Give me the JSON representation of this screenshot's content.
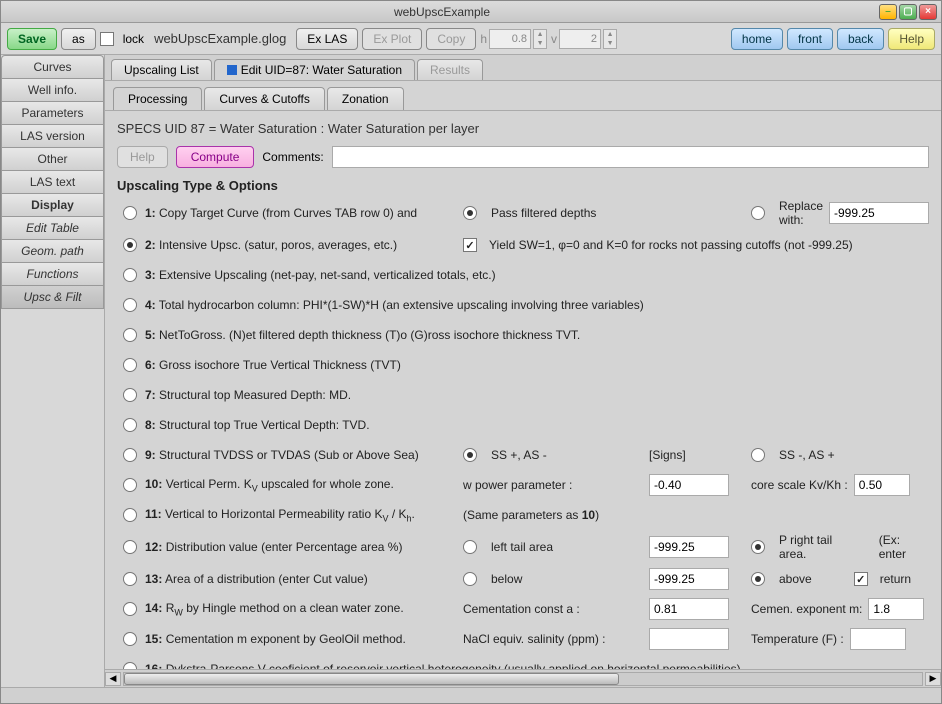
{
  "window": {
    "title": "webUpscExample"
  },
  "toolbar": {
    "save": "Save",
    "as": "as",
    "lock": "lock",
    "filename": "webUpscExample.glog",
    "ex_las": "Ex LAS",
    "ex_plot": "Ex Plot",
    "copy": "Copy",
    "h_label": "h",
    "h_value": "0.8",
    "v_label": "v",
    "v_value": "2",
    "home": "home",
    "front": "front",
    "back": "back",
    "help": "Help"
  },
  "sidebar": {
    "items": [
      {
        "label": "Curves",
        "style": ""
      },
      {
        "label": "Well info.",
        "style": ""
      },
      {
        "label": "Parameters",
        "style": ""
      },
      {
        "label": "LAS version",
        "style": ""
      },
      {
        "label": "Other",
        "style": ""
      },
      {
        "label": "LAS text",
        "style": ""
      },
      {
        "label": "Display",
        "style": "bold"
      },
      {
        "label": "Edit Table",
        "style": "italic"
      },
      {
        "label": "Geom. path",
        "style": "italic"
      },
      {
        "label": "Functions",
        "style": "italic"
      },
      {
        "label": "Upsc & Filt",
        "style": "italic active"
      }
    ]
  },
  "topTabs": {
    "list": "Upscaling List",
    "edit": "Edit UID=87: Water Saturation",
    "results": "Results"
  },
  "subTabs": {
    "processing": "Processing",
    "curves": "Curves & Cutoffs",
    "zonation": "Zonation"
  },
  "spec": "SPECS UID 87 = Water Saturation : Water Saturation per layer",
  "helpBtn": "Help",
  "computeBtn": "Compute",
  "commentsLabel": "Comments:",
  "sectionHeader": "Upscaling Type & Options",
  "opt1": {
    "num": "1:",
    "label": "Copy Target Curve (from Curves TAB row 0) and",
    "pass": "Pass filtered depths",
    "replace": "Replace with:",
    "value": "-999.25"
  },
  "opt2": {
    "num": "2:",
    "label": "Intensive Upsc. (satur, poros, averages, etc.)",
    "yield": "Yield SW=1, φ=0 and K=0 for rocks not passing cutoffs (not -999.25)"
  },
  "opt3": {
    "num": "3:",
    "label": "Extensive Upscaling (net-pay, net-sand, verticalized totals, etc.)"
  },
  "opt4": {
    "num": "4:",
    "label": "Total hydrocarbon column: PHI*(1-SW)*H (an extensive upscaling involving three variables)"
  },
  "opt5": {
    "num": "5:",
    "label": "NetToGross. (N)et filtered depth thickness (T)o (G)ross isochore thickness TVT."
  },
  "opt6": {
    "num": "6:",
    "label": "Gross isochore True Vertical Thickness (TVT)"
  },
  "opt7": {
    "num": "7:",
    "label": "Structural top Measured Depth: MD."
  },
  "opt8": {
    "num": "8:",
    "label": "Structural top True Vertical Depth: TVD."
  },
  "opt9": {
    "num": "9:",
    "label": "Structural TVDSS or TVDAS (Sub or Above Sea)",
    "ss_plus": "SS +, AS -",
    "signs": "[Signs]",
    "ss_minus": "SS -, AS +"
  },
  "opt10": {
    "num": "10:",
    "label": "Vertical Perm. K",
    "sub": "V",
    "label2": " upscaled for whole zone.",
    "param": "w power parameter :",
    "val": "-0.40",
    "core": "core scale Kv/Kh :",
    "coreval": "0.50"
  },
  "opt11": {
    "num": "11:",
    "label": "Vertical to Horizontal Permeability ratio K",
    "sub1": "V",
    "slash": " / K",
    "sub2": "h",
    "tail": "(Same parameters as ",
    "b": "10",
    ")": ")"
  },
  "opt12": {
    "num": "12:",
    "label": "Distribution value (enter Percentage area %)",
    "left": "left tail area",
    "val": "-999.25",
    "right": "P right tail area.",
    "ex": "(Ex: enter "
  },
  "opt13": {
    "num": "13:",
    "label": "Area of a distribution (enter Cut value)",
    "below": "below",
    "val": "-999.25",
    "above": "above",
    "return": "return"
  },
  "opt14": {
    "num": "14:",
    "label": "R",
    "sub": "W",
    "label2": " by Hingle method on a clean water zone.",
    "cem": "Cementation const a :",
    "cemval": "0.81",
    "exp": "Cemen. exponent m:",
    "expval": "1.8"
  },
  "opt15": {
    "num": "15:",
    "label": "Cementation m exponent by GeolOil method.",
    "nacl": "NaCl equiv. salinity (ppm) :",
    "temp": "Temperature (F) :"
  },
  "opt16": {
    "num": "16:",
    "label": "Dykstra-Parsons V coeficient of reservoir vertical heterogeneity (usually applied on horizontal permeabilities)"
  }
}
